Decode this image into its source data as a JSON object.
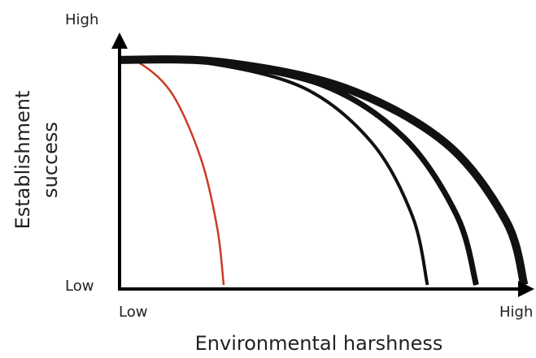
{
  "chart_data": {
    "type": "line",
    "title": "",
    "xlabel": "Environmental harshness",
    "ylabel_lines": [
      "Establishment",
      "success"
    ],
    "x_ticks": {
      "low": "Low",
      "high": "High"
    },
    "y_ticks": {
      "low": "Low",
      "high": "High"
    },
    "xlim": [
      0,
      1
    ],
    "ylim": [
      0,
      1
    ],
    "grid": false,
    "legend": "none",
    "series": [
      {
        "color": "#cc3a26",
        "weight": "thin",
        "x": [
          0,
          0.05,
          0.13,
          0.2,
          0.24,
          0.256
        ],
        "y": [
          0.97,
          0.965,
          0.83,
          0.55,
          0.25,
          0
        ]
      },
      {
        "color": "#111111",
        "weight": "medium",
        "x": [
          0,
          0.2,
          0.45,
          0.62,
          0.72,
          0.757
        ],
        "y": [
          0.98,
          0.97,
          0.86,
          0.62,
          0.3,
          0
        ]
      },
      {
        "color": "#111111",
        "weight": "bold",
        "x": [
          0,
          0.22,
          0.5,
          0.7,
          0.83,
          0.877
        ],
        "y": [
          0.98,
          0.97,
          0.87,
          0.64,
          0.3,
          0
        ]
      },
      {
        "color": "#111111",
        "weight": "heavy",
        "x": [
          0,
          0.25,
          0.55,
          0.8,
          0.95,
          0.995
        ],
        "y": [
          0.98,
          0.97,
          0.86,
          0.62,
          0.28,
          0
        ]
      }
    ]
  }
}
